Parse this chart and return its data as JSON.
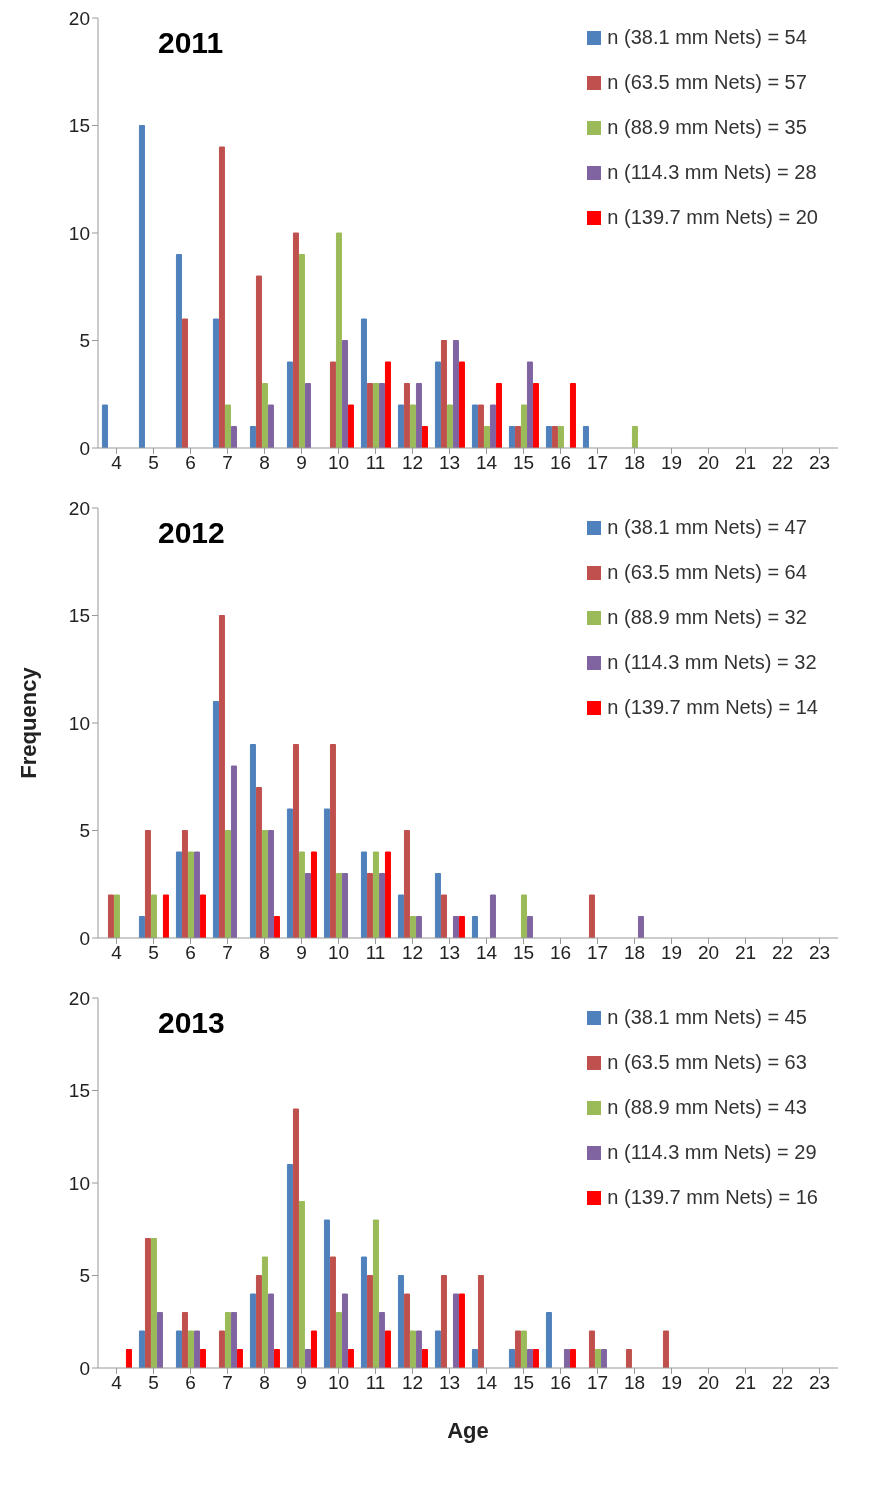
{
  "chart_data": [
    {
      "type": "bar",
      "title": "2011",
      "categories": [
        "4",
        "5",
        "6",
        "7",
        "8",
        "9",
        "10",
        "11",
        "12",
        "13",
        "14",
        "15",
        "16",
        "17",
        "18",
        "19",
        "20",
        "21",
        "22",
        "23"
      ],
      "ylim": [
        0,
        20
      ],
      "yticks": [
        0,
        5,
        10,
        15,
        20
      ],
      "legend": "top right",
      "series": [
        {
          "name": "n (38.1 mm Nets) = 54",
          "color": "#4f81bd",
          "values": [
            2,
            15,
            9,
            6,
            1,
            4,
            0,
            6,
            2,
            4,
            2,
            1,
            1,
            1,
            0,
            0,
            0,
            0,
            0,
            0
          ]
        },
        {
          "name": "n (63.5 mm Nets) = 57",
          "color": "#c0504d",
          "values": [
            0,
            0,
            6,
            14,
            8,
            10,
            4,
            3,
            3,
            5,
            2,
            1,
            1,
            0,
            0,
            0,
            0,
            0,
            0,
            0
          ]
        },
        {
          "name": "n (88.9 mm Nets) = 35",
          "color": "#9bbb59",
          "values": [
            0,
            0,
            0,
            2,
            3,
            9,
            10,
            3,
            2,
            2,
            1,
            2,
            1,
            0,
            1,
            0,
            0,
            0,
            0,
            0
          ]
        },
        {
          "name": "n (114.3 mm Nets) = 28",
          "color": "#8064a2",
          "values": [
            0,
            0,
            0,
            1,
            2,
            3,
            5,
            3,
            3,
            5,
            2,
            4,
            0,
            0,
            0,
            0,
            0,
            0,
            0,
            0
          ]
        },
        {
          "name": "n (139.7 mm Nets) = 20",
          "color": "#ff0000",
          "values": [
            0,
            0,
            0,
            0,
            0,
            0,
            2,
            4,
            1,
            4,
            3,
            3,
            3,
            0,
            0,
            0,
            0,
            0,
            0,
            0
          ]
        }
      ]
    },
    {
      "type": "bar",
      "title": "2012",
      "ylabel": "Frequency",
      "categories": [
        "4",
        "5",
        "6",
        "7",
        "8",
        "9",
        "10",
        "11",
        "12",
        "13",
        "14",
        "15",
        "16",
        "17",
        "18",
        "19",
        "20",
        "21",
        "22",
        "23"
      ],
      "ylim": [
        0,
        20
      ],
      "yticks": [
        0,
        5,
        10,
        15,
        20
      ],
      "legend": "top right",
      "series": [
        {
          "name": "n (38.1 mm Nets) = 47",
          "color": "#4f81bd",
          "values": [
            0,
            1,
            4,
            11,
            9,
            6,
            6,
            4,
            2,
            3,
            1,
            0,
            0,
            0,
            0,
            0,
            0,
            0,
            0,
            0
          ]
        },
        {
          "name": "n (63.5 mm Nets) = 64",
          "color": "#c0504d",
          "values": [
            2,
            5,
            5,
            15,
            7,
            9,
            9,
            3,
            5,
            2,
            0,
            0,
            0,
            2,
            0,
            0,
            0,
            0,
            0,
            0
          ]
        },
        {
          "name": "n (88.9 mm Nets) = 32",
          "color": "#9bbb59",
          "values": [
            2,
            2,
            4,
            5,
            5,
            4,
            3,
            4,
            1,
            0,
            0,
            2,
            0,
            0,
            0,
            0,
            0,
            0,
            0,
            0
          ]
        },
        {
          "name": "n (114.3 mm Nets) = 32",
          "color": "#8064a2",
          "values": [
            0,
            0,
            4,
            8,
            5,
            3,
            3,
            3,
            1,
            1,
            2,
            1,
            0,
            0,
            1,
            0,
            0,
            0,
            0,
            0
          ]
        },
        {
          "name": "n (139.7 mm Nets) = 14",
          "color": "#ff0000",
          "values": [
            0,
            2,
            2,
            0,
            1,
            4,
            0,
            4,
            0,
            1,
            0,
            0,
            0,
            0,
            0,
            0,
            0,
            0,
            0,
            0
          ]
        }
      ]
    },
    {
      "type": "bar",
      "title": "2013",
      "xlabel": "Age",
      "categories": [
        "4",
        "5",
        "6",
        "7",
        "8",
        "9",
        "10",
        "11",
        "12",
        "13",
        "14",
        "15",
        "16",
        "17",
        "18",
        "19",
        "20",
        "21",
        "22",
        "23"
      ],
      "ylim": [
        0,
        20
      ],
      "yticks": [
        0,
        5,
        10,
        15,
        20
      ],
      "legend": "top right",
      "series": [
        {
          "name": "n (38.1 mm Nets) = 45",
          "color": "#4f81bd",
          "values": [
            0,
            2,
            2,
            0,
            4,
            11,
            8,
            6,
            5,
            2,
            1,
            1,
            3,
            0,
            0,
            0,
            0,
            0,
            0,
            0
          ]
        },
        {
          "name": "n (63.5 mm Nets) = 63",
          "color": "#c0504d",
          "values": [
            0,
            7,
            3,
            2,
            5,
            14,
            6,
            5,
            4,
            5,
            5,
            2,
            0,
            2,
            1,
            2,
            0,
            0,
            0,
            0
          ]
        },
        {
          "name": "n (88.9 mm Nets) = 43",
          "color": "#9bbb59",
          "values": [
            0,
            7,
            2,
            3,
            6,
            9,
            3,
            8,
            2,
            0,
            0,
            2,
            0,
            1,
            0,
            0,
            0,
            0,
            0,
            0
          ]
        },
        {
          "name": "n (114.3 mm Nets) = 29",
          "color": "#8064a2",
          "values": [
            0,
            3,
            2,
            3,
            4,
            1,
            4,
            3,
            2,
            4,
            0,
            1,
            1,
            1,
            0,
            0,
            0,
            0,
            0,
            0
          ]
        },
        {
          "name": "n (139.7 mm Nets) = 16",
          "color": "#ff0000",
          "values": [
            1,
            0,
            1,
            1,
            1,
            2,
            1,
            2,
            1,
            4,
            0,
            1,
            1,
            0,
            0,
            0,
            0,
            0,
            0,
            0
          ]
        }
      ]
    }
  ]
}
